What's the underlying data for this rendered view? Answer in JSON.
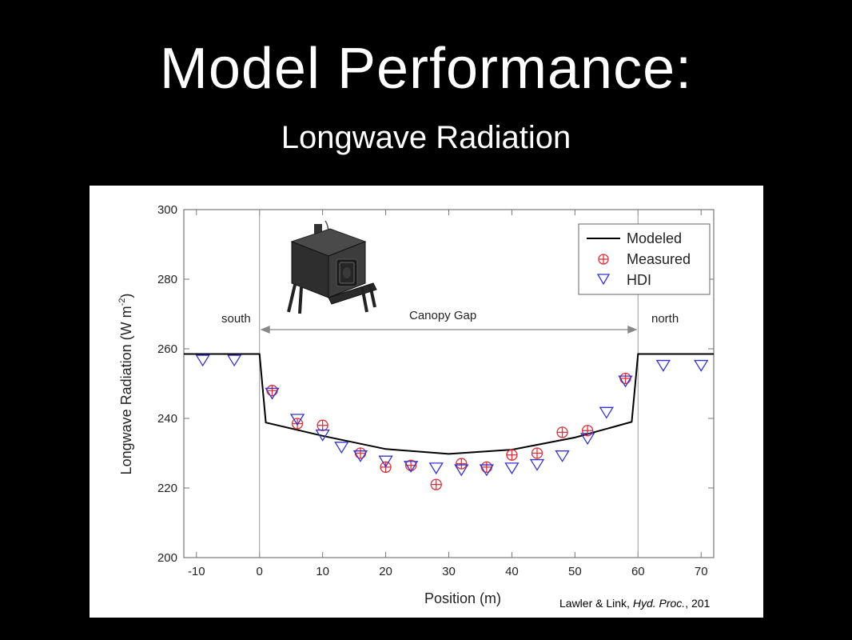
{
  "slide": {
    "title": "Model Performance:",
    "subtitle": "Longwave Radiation",
    "citation": {
      "authors": "Lawler & Link, ",
      "journal": "Hyd. Proc.",
      "year": ", 201"
    }
  },
  "chart_data": {
    "type": "line",
    "xlabel": "Position (m)",
    "ylabel_main": "Longwave Radiation (W m",
    "ylabel_sup": "-2",
    "ylabel_close": ")",
    "xlim": [
      -12,
      72
    ],
    "ylim": [
      200,
      300
    ],
    "xticks": [
      -10,
      0,
      10,
      20,
      30,
      40,
      50,
      60,
      70
    ],
    "yticks": [
      200,
      220,
      240,
      260,
      280,
      300
    ],
    "grid": false,
    "legend_position": "top-right",
    "annotations": {
      "south": "south",
      "north": "north",
      "gap": "Canopy Gap",
      "gap_range": [
        0,
        60
      ]
    },
    "colors": {
      "modeled": "#000000",
      "measured": "#e0303a",
      "hdi": "#3333cc"
    },
    "series": [
      {
        "name": "Modeled",
        "style": "line",
        "x": [
          -12,
          0,
          1,
          10,
          20,
          30,
          40,
          50,
          58,
          59,
          60,
          72
        ],
        "y": [
          258.5,
          258.5,
          238.8,
          235,
          231.2,
          229.8,
          231,
          234.5,
          238.5,
          239,
          258.5,
          258.5
        ]
      },
      {
        "name": "Measured",
        "style": "circle-plus",
        "x": [
          2,
          6,
          10,
          16,
          20,
          24,
          28,
          32,
          36,
          40,
          44,
          48,
          52,
          58
        ],
        "y": [
          248,
          238.5,
          238,
          230,
          226,
          226.5,
          221,
          227,
          226,
          229.5,
          230,
          236,
          236.5,
          251.5
        ]
      },
      {
        "name": "HDI",
        "style": "triangle-down",
        "x": [
          -9,
          -4,
          2,
          6,
          10,
          13,
          16,
          20,
          24,
          28,
          32,
          36,
          40,
          44,
          48,
          52,
          55,
          58,
          64,
          70
        ],
        "y": [
          257,
          257,
          247.5,
          240,
          235.5,
          232,
          229.5,
          228,
          226.5,
          226,
          225.5,
          225.5,
          226,
          227,
          229.5,
          234.5,
          242,
          251,
          255.5,
          255.5
        ]
      }
    ]
  }
}
